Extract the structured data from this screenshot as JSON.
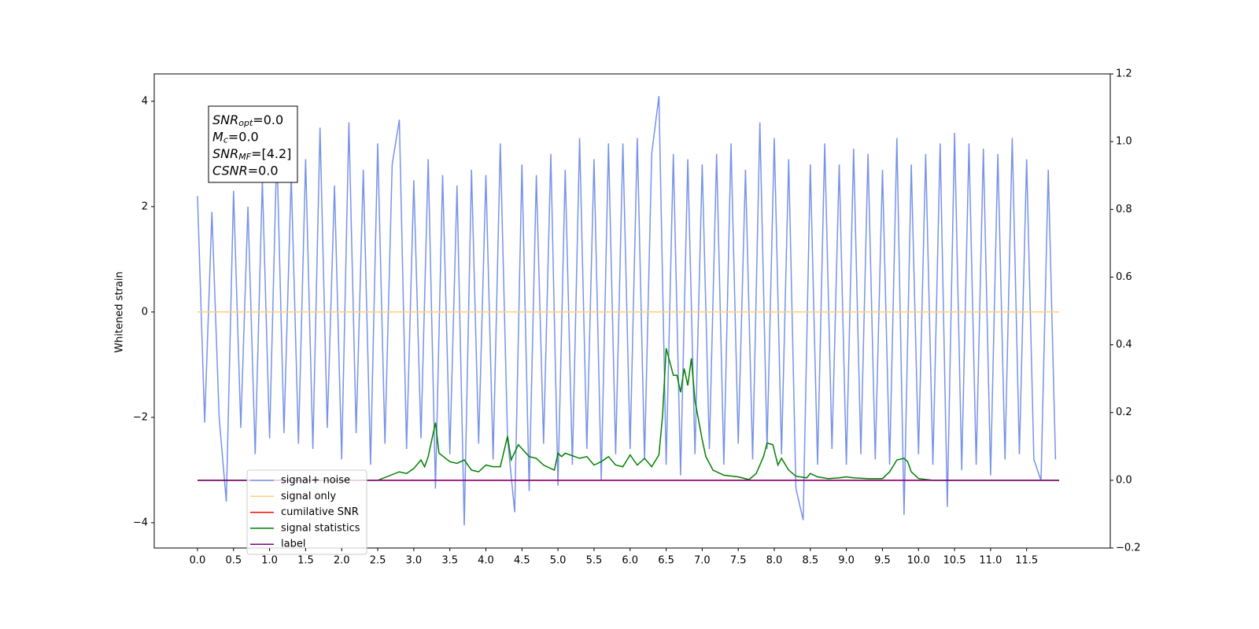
{
  "chart_data": {
    "type": "line",
    "ylabel": "Whitened strain",
    "xlim": [
      -0.6,
      12.66
    ],
    "ylim": [
      -4.48,
      4.52
    ],
    "y2lim": [
      -0.2,
      1.2
    ],
    "xticks": [
      {
        "value": 0,
        "label": "0.0"
      },
      0.5,
      {
        "value": 1,
        "label": "1.0"
      },
      1.5,
      {
        "value": 2,
        "label": "2.0"
      },
      2.5,
      {
        "value": 3,
        "label": "3.0"
      },
      3.5,
      {
        "value": 4,
        "label": "4.0"
      },
      4.5,
      {
        "value": 5,
        "label": "5.0"
      },
      5.5,
      {
        "value": 6,
        "label": "6.0"
      },
      6.5,
      {
        "value": 7,
        "label": "7.0"
      },
      7.5,
      {
        "value": 8,
        "label": "8.0"
      },
      8.5,
      {
        "value": 9,
        "label": "9.0"
      },
      9.5,
      {
        "value": 10,
        "label": "10.0"
      },
      10.5,
      {
        "value": 11,
        "label": "11.0"
      },
      11.5
    ],
    "yticks": [
      {
        "value": -4,
        "label": "−4"
      },
      {
        "value": -2,
        "label": "−2"
      },
      0,
      2,
      4
    ],
    "y2ticks": [
      {
        "value": -0.2,
        "label": "−0.2"
      },
      {
        "value": 0,
        "label": "0.0"
      },
      0.2,
      0.4,
      0.6,
      0.8,
      {
        "value": 1,
        "label": "1.0"
      },
      1.2
    ],
    "annotation": [
      {
        "name": "SNR",
        "sub": "opt",
        "text": "=0.0"
      },
      {
        "name": "M",
        "sub": "c",
        "text": "=0.0"
      },
      {
        "name": "SNR",
        "sub": "MF",
        "text": "=[4.2]"
      },
      {
        "name": "CSNR",
        "sub": null,
        "text": "=0.0"
      }
    ],
    "series": [
      {
        "name": "signal+ noise",
        "color": "#7893e6",
        "axis": "y",
        "x": [
          0,
          0.1,
          0.2,
          0.3,
          0.4,
          0.5,
          0.6,
          0.7,
          0.8,
          0.9,
          1,
          1.1,
          1.2,
          1.3,
          1.4,
          1.5,
          1.6,
          1.7,
          1.8,
          1.9,
          2,
          2.1,
          2.2,
          2.3,
          2.4,
          2.5,
          2.6,
          2.7,
          2.8,
          2.9,
          3,
          3.1,
          3.2,
          3.3,
          3.4,
          3.5,
          3.6,
          3.7,
          3.8,
          3.9,
          4,
          4.1,
          4.2,
          4.3,
          4.4,
          4.5,
          4.6,
          4.7,
          4.8,
          4.9,
          5,
          5.1,
          5.2,
          5.3,
          5.4,
          5.5,
          5.6,
          5.7,
          5.8,
          5.9,
          6,
          6.1,
          6.2,
          6.3,
          6.4,
          6.5,
          6.6,
          6.7,
          6.8,
          6.9,
          7,
          7.1,
          7.2,
          7.3,
          7.4,
          7.5,
          7.6,
          7.7,
          7.8,
          7.9,
          8,
          8.1,
          8.2,
          8.3,
          8.4,
          8.5,
          8.6,
          8.7,
          8.8,
          8.9,
          9,
          9.1,
          9.2,
          9.3,
          9.4,
          9.5,
          9.6,
          9.7,
          9.8,
          9.9,
          10,
          10.1,
          10.2,
          10.3,
          10.4,
          10.5,
          10.6,
          10.7,
          10.8,
          10.9,
          11,
          11.1,
          11.2,
          11.3,
          11.4,
          11.5,
          11.6,
          11.7,
          11.8,
          11.9
        ],
        "values": [
          2.2,
          -2.1,
          1.9,
          -2.0,
          -3.6,
          2.3,
          -2.2,
          2.0,
          -2.7,
          2.5,
          -2.4,
          3.1,
          -2.3,
          2.6,
          -2.5,
          2.9,
          -2.6,
          3.5,
          -2.2,
          2.4,
          -2.8,
          3.6,
          -2.3,
          2.7,
          -2.9,
          3.2,
          -2.5,
          2.8,
          3.65,
          -2.6,
          2.5,
          -2.4,
          2.9,
          -3.35,
          2.6,
          -2.7,
          2.4,
          -4.05,
          2.7,
          -2.5,
          2.6,
          -2.8,
          3.2,
          -2.4,
          -3.8,
          2.8,
          -3.4,
          2.6,
          -2.5,
          3.0,
          -3.3,
          2.7,
          -2.9,
          3.3,
          -2.6,
          2.9,
          -3.2,
          3.2,
          -2.7,
          3.2,
          -2.6,
          3.3,
          -2.8,
          3.0,
          4.1,
          -2.9,
          3.0,
          -3.1,
          2.9,
          -2.7,
          2.8,
          -2.6,
          3.0,
          -2.9,
          3.2,
          -2.5,
          2.7,
          -2.8,
          3.6,
          -2.6,
          3.3,
          -2.7,
          2.9,
          -3.35,
          -3.95,
          2.8,
          -2.9,
          3.2,
          -2.6,
          2.8,
          -2.9,
          3.1,
          -2.7,
          3.0,
          -2.8,
          2.7,
          -2.9,
          3.3,
          -3.85,
          2.8,
          -2.7,
          3.0,
          -2.9,
          3.2,
          -3.7,
          3.4,
          -3.0,
          3.2,
          -2.9,
          3.1,
          -3.1,
          3.0,
          -2.8,
          3.3,
          -2.7,
          2.9,
          -2.8,
          -3.2,
          2.7,
          -2.8
        ]
      },
      {
        "name": "signal only",
        "color": "#ffcf80",
        "axis": "y",
        "x": [
          0,
          11.95
        ],
        "values": [
          0,
          0
        ]
      },
      {
        "name": "cumilative SNR",
        "color": "#ff0000",
        "axis": "y2",
        "x": [
          0,
          11.95
        ],
        "values": [
          0,
          0
        ]
      },
      {
        "name": "signal statistics",
        "color": "#008000",
        "axis": "y2",
        "x": [
          0,
          2.4,
          2.5,
          2.8,
          2.9,
          3.0,
          3.1,
          3.15,
          3.2,
          3.3,
          3.35,
          3.5,
          3.6,
          3.7,
          3.8,
          3.9,
          4.0,
          4.1,
          4.2,
          4.3,
          4.35,
          4.45,
          4.6,
          4.7,
          4.8,
          4.95,
          5.0,
          5.05,
          5.1,
          5.3,
          5.4,
          5.5,
          5.6,
          5.7,
          5.8,
          5.9,
          6.0,
          6.1,
          6.2,
          6.3,
          6.4,
          6.45,
          6.5,
          6.6,
          6.65,
          6.7,
          6.75,
          6.8,
          6.85,
          6.9,
          7.0,
          7.05,
          7.15,
          7.3,
          7.5,
          7.65,
          7.75,
          7.85,
          7.9,
          7.98,
          8.05,
          8.1,
          8.2,
          8.3,
          8.45,
          8.5,
          8.6,
          8.75,
          8.9,
          9.0,
          9.1,
          9.3,
          9.5,
          9.6,
          9.7,
          9.8,
          9.85,
          9.9,
          10.0,
          10.2,
          11.95
        ],
        "values": [
          0,
          0,
          0,
          0.025,
          0.02,
          0.035,
          0.06,
          0.04,
          0.07,
          0.17,
          0.08,
          0.055,
          0.05,
          0.06,
          0.03,
          0.025,
          0.045,
          0.04,
          0.04,
          0.13,
          0.06,
          0.105,
          0.07,
          0.065,
          0.045,
          0.03,
          0.08,
          0.07,
          0.08,
          0.065,
          0.07,
          0.045,
          0.055,
          0.07,
          0.045,
          0.04,
          0.075,
          0.045,
          0.065,
          0.04,
          0.075,
          0.19,
          0.39,
          0.31,
          0.31,
          0.26,
          0.33,
          0.28,
          0.36,
          0.235,
          0.12,
          0.07,
          0.03,
          0.015,
          0.01,
          0.002,
          0.02,
          0.07,
          0.11,
          0.105,
          0.045,
          0.065,
          0.03,
          0.012,
          0.007,
          0.02,
          0.01,
          0.005,
          0.007,
          0.01,
          0.007,
          0.005,
          0.005,
          0.025,
          0.06,
          0.065,
          0.055,
          0.025,
          0.005,
          0,
          0
        ]
      },
      {
        "name": "label",
        "color": "#800080",
        "axis": "y2",
        "x": [
          0,
          11.95
        ],
        "values": [
          0,
          0
        ]
      }
    ]
  }
}
